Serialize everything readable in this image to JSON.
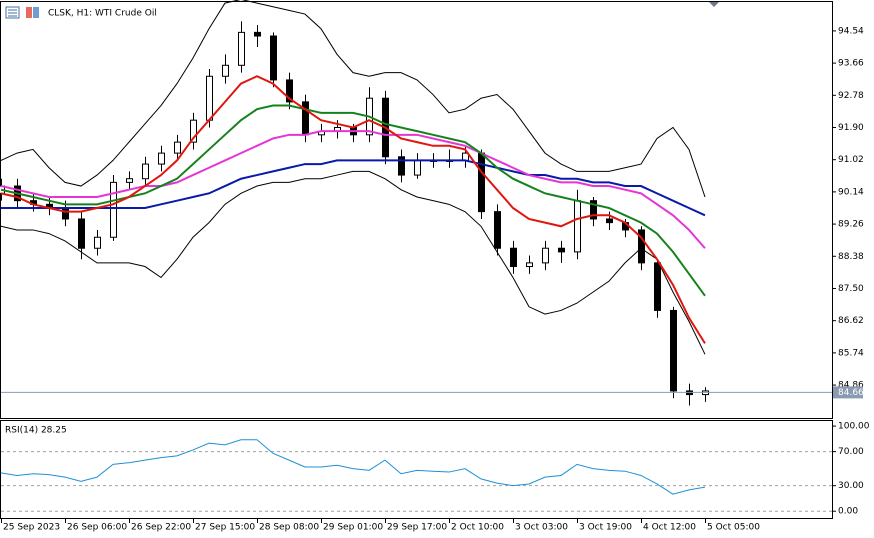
{
  "chart_data": [
    {
      "type": "candlestick",
      "title": "CLSK, H1:  WTI Crude Oil",
      "categories": [
        "25 Sep 2023",
        null,
        null,
        null,
        "26 Sep 06:00",
        null,
        null,
        null,
        "26 Sep 22:00",
        null,
        null,
        null,
        "27 Sep 15:00",
        null,
        null,
        null,
        "28 Sep 08:00",
        null,
        null,
        null,
        "29 Sep 01:00",
        null,
        null,
        null,
        "29 Sep 17:00",
        null,
        null,
        null,
        "2 Oct 10:00",
        null,
        null,
        null,
        "3 Oct 03:00",
        null,
        null,
        null,
        "3 Oct 19:00",
        null,
        null,
        null,
        "4 Oct 12:00",
        null,
        null,
        null,
        "5 Oct 05:00"
      ],
      "open": [
        90.1,
        90.3,
        89.9,
        89.8,
        89.7,
        89.4,
        88.6,
        88.9,
        90.4,
        90.5,
        90.9,
        91.2,
        91.5,
        92.1,
        93.3,
        93.6,
        94.5,
        94.4,
        93.2,
        92.6,
        91.7,
        91.8,
        91.9,
        91.7,
        92.7,
        91.1,
        90.6,
        91.0,
        91.0,
        91.0,
        91.2,
        89.6,
        88.6,
        88.1,
        88.2,
        88.6,
        88.5,
        89.9,
        89.4,
        89.3,
        89.1,
        88.2,
        86.9,
        84.7,
        84.6
      ],
      "high": [
        90.5,
        90.5,
        90.1,
        90.0,
        89.9,
        89.6,
        89.1,
        90.6,
        90.7,
        91.1,
        91.4,
        91.7,
        92.3,
        93.5,
        93.9,
        94.8,
        94.7,
        94.5,
        93.4,
        92.8,
        92.0,
        92.1,
        92.0,
        93.0,
        92.9,
        91.3,
        91.2,
        91.2,
        91.3,
        91.4,
        91.3,
        89.8,
        88.8,
        88.4,
        88.8,
        88.8,
        90.2,
        90.0,
        89.6,
        89.4,
        89.2,
        88.3,
        87.0,
        84.9,
        84.8
      ],
      "low": [
        89.9,
        89.7,
        89.6,
        89.5,
        89.2,
        88.3,
        88.4,
        88.8,
        90.2,
        90.3,
        90.7,
        91.0,
        91.3,
        91.9,
        93.1,
        93.4,
        94.1,
        93.0,
        92.4,
        91.5,
        91.5,
        91.6,
        91.5,
        91.5,
        90.9,
        90.4,
        90.5,
        90.8,
        90.8,
        90.8,
        89.4,
        88.4,
        87.9,
        87.9,
        88.0,
        88.2,
        88.3,
        89.2,
        89.1,
        88.9,
        88.0,
        86.7,
        84.5,
        84.3,
        84.4
      ],
      "close": [
        90.3,
        89.9,
        89.8,
        89.7,
        89.4,
        88.6,
        88.9,
        90.4,
        90.5,
        90.9,
        91.2,
        91.5,
        92.1,
        93.3,
        93.6,
        94.5,
        94.4,
        93.2,
        92.6,
        91.7,
        91.8,
        91.9,
        91.7,
        92.7,
        91.1,
        90.6,
        91.0,
        91.0,
        91.0,
        91.2,
        89.6,
        88.6,
        88.1,
        88.2,
        88.6,
        88.5,
        89.9,
        89.4,
        89.3,
        89.1,
        88.2,
        86.9,
        84.7,
        84.6,
        84.7
      ],
      "series": [
        {
          "color": "#000000",
          "values": [
            91.0,
            91.2,
            91.3,
            90.8,
            90.4,
            90.3,
            90.6,
            91.0,
            91.5,
            92.0,
            92.5,
            93.1,
            93.8,
            94.6,
            95.3,
            95.4,
            95.3,
            95.2,
            95.1,
            95.0,
            94.6,
            93.9,
            93.4,
            93.3,
            93.4,
            93.4,
            93.2,
            92.8,
            92.3,
            92.4,
            92.7,
            92.8,
            92.4,
            91.8,
            91.2,
            90.9,
            90.7,
            90.7,
            90.7,
            90.8,
            90.9,
            91.6,
            91.9,
            91.3,
            90.0
          ]
        },
        {
          "color": "#000000",
          "values": [
            89.2,
            89.1,
            89.1,
            89.0,
            88.8,
            88.5,
            88.2,
            88.2,
            88.2,
            88.1,
            87.8,
            88.3,
            88.9,
            89.3,
            89.8,
            90.1,
            90.3,
            90.4,
            90.4,
            90.5,
            90.5,
            90.6,
            90.7,
            90.7,
            90.5,
            90.2,
            90.0,
            89.9,
            89.8,
            89.6,
            89.2,
            88.5,
            87.8,
            87.0,
            86.8,
            86.9,
            87.1,
            87.4,
            87.7,
            88.2,
            88.6,
            88.3,
            87.4,
            86.6,
            85.7
          ]
        },
        {
          "color": "#0a1aa8",
          "values": [
            89.7,
            89.7,
            89.7,
            89.7,
            89.7,
            89.7,
            89.7,
            89.7,
            89.7,
            89.7,
            89.8,
            89.9,
            90.0,
            90.1,
            90.3,
            90.5,
            90.6,
            90.7,
            90.8,
            90.9,
            90.9,
            91.0,
            91.0,
            91.0,
            91.0,
            91.0,
            91.0,
            91.0,
            91.0,
            91.0,
            90.9,
            90.8,
            90.7,
            90.6,
            90.6,
            90.5,
            90.5,
            90.4,
            90.4,
            90.3,
            90.3,
            90.1,
            89.9,
            89.7,
            89.5
          ]
        },
        {
          "color": "#e535d6",
          "values": [
            90.3,
            90.2,
            90.1,
            90.0,
            90.0,
            90.0,
            90.0,
            90.1,
            90.2,
            90.3,
            90.3,
            90.4,
            90.6,
            90.8,
            91.0,
            91.2,
            91.4,
            91.6,
            91.7,
            91.7,
            91.8,
            91.8,
            91.8,
            91.8,
            91.7,
            91.7,
            91.7,
            91.6,
            91.5,
            91.4,
            91.2,
            91.0,
            90.8,
            90.6,
            90.5,
            90.4,
            90.4,
            90.3,
            90.3,
            90.2,
            90.1,
            89.8,
            89.5,
            89.1,
            88.6
          ]
        },
        {
          "color": "#16821c",
          "values": [
            90.2,
            90.1,
            90.0,
            89.9,
            89.8,
            89.8,
            89.8,
            89.9,
            90.0,
            90.1,
            90.3,
            90.5,
            90.9,
            91.3,
            91.7,
            92.1,
            92.4,
            92.5,
            92.5,
            92.4,
            92.3,
            92.3,
            92.3,
            92.2,
            92.0,
            91.9,
            91.8,
            91.7,
            91.6,
            91.5,
            91.2,
            90.8,
            90.5,
            90.3,
            90.1,
            90.0,
            89.9,
            89.8,
            89.7,
            89.5,
            89.3,
            89.0,
            88.5,
            87.9,
            87.3
          ]
        },
        {
          "color": "#e0160f",
          "values": [
            90.1,
            90.0,
            89.8,
            89.7,
            89.6,
            89.6,
            89.7,
            89.8,
            90.0,
            90.3,
            90.6,
            91.0,
            91.6,
            92.1,
            92.6,
            93.1,
            93.3,
            93.1,
            92.7,
            92.4,
            92.1,
            92.0,
            91.9,
            92.1,
            91.9,
            91.6,
            91.5,
            91.4,
            91.4,
            91.3,
            90.7,
            90.2,
            89.7,
            89.4,
            89.3,
            89.2,
            89.4,
            89.5,
            89.5,
            89.3,
            88.9,
            88.3,
            87.6,
            86.7,
            86.0
          ]
        }
      ],
      "last_price": 84.66,
      "ylim": [
        83.96,
        95.33
      ],
      "yticks": [
        94.54,
        93.66,
        92.78,
        {
          "value": 91.9,
          "label": "91.90"
        },
        91.02,
        90.14,
        89.26,
        88.38,
        {
          "value": 87.5,
          "label": "87.50"
        },
        86.62,
        85.74,
        84.86
      ],
      "grid": false
    },
    {
      "type": "line",
      "title": "RSI(14) 28.25",
      "color": "#1e90d6",
      "values": [
        45,
        42,
        44,
        43,
        40,
        35,
        40,
        55,
        57,
        60,
        63,
        65,
        72,
        80,
        78,
        84,
        84,
        68,
        60,
        52,
        52,
        54,
        50,
        48,
        60,
        44,
        48,
        47,
        46,
        50,
        38,
        33,
        30,
        32,
        40,
        42,
        55,
        50,
        48,
        47,
        42,
        32,
        20,
        25,
        28.25
      ],
      "ylim": [
        -8,
        106
      ],
      "yticks": [
        {
          "value": 100,
          "label": "100.00"
        },
        {
          "value": 70,
          "label": "70.00"
        },
        {
          "value": 30,
          "label": "30.00"
        },
        {
          "value": 0,
          "label": "0.00"
        }
      ],
      "grid": true
    }
  ]
}
